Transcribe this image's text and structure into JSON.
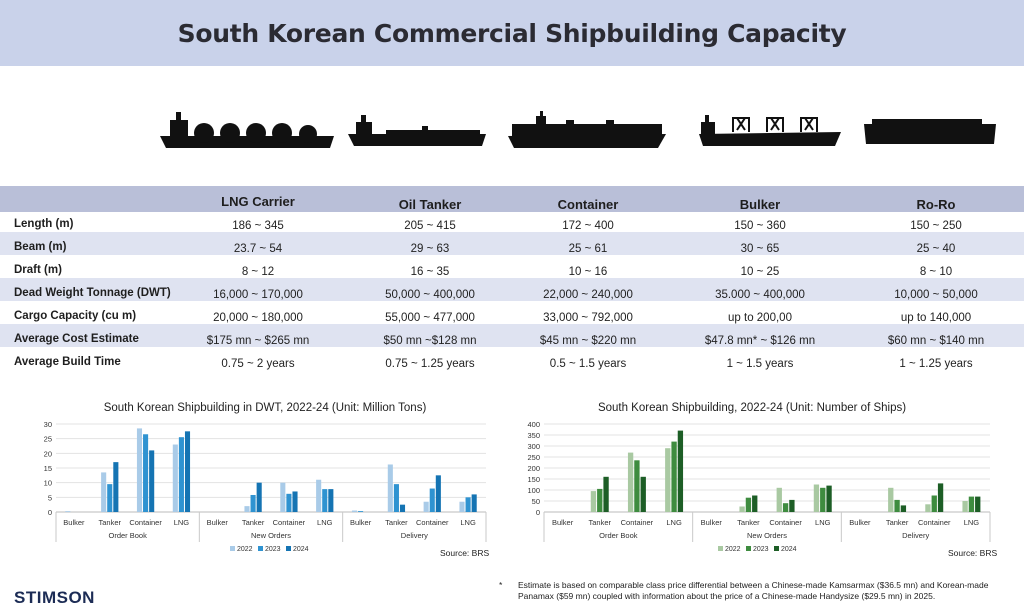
{
  "title": "South Korean Commercial Shipbuilding Capacity",
  "ship_icons": [
    "lng-carrier-silhouette",
    "oil-tanker-silhouette",
    "container-ship-silhouette",
    "bulker-silhouette",
    "ro-ro-silhouette"
  ],
  "table": {
    "columns": [
      "LNG Carrier",
      "Oil Tanker",
      "Container",
      "Bulker",
      "Ro-Ro"
    ],
    "rows": [
      {
        "label": "Length (m)",
        "values": [
          "186 ~ 345",
          "205 ~ 415",
          "172 ~ 400",
          "150 ~ 360",
          "150 ~ 250"
        ]
      },
      {
        "label": "Beam (m)",
        "values": [
          "23.7 ~ 54",
          "29 ~ 63",
          "25 ~ 61",
          "30 ~ 65",
          "25 ~ 40"
        ]
      },
      {
        "label": "Draft (m)",
        "values": [
          "8 ~ 12",
          "16 ~ 35",
          "10 ~ 16",
          "10 ~ 25",
          "8 ~ 10"
        ]
      },
      {
        "label": "Dead Weight Tonnage (DWT)",
        "values": [
          "16,000 ~ 170,000",
          "50,000 ~ 400,000",
          "22,000 ~ 240,000",
          "35.000 ~ 400,000",
          "10,000 ~ 50,000"
        ]
      },
      {
        "label": "Cargo Capacity (cu m)",
        "values": [
          "20,000 ~ 180,000",
          "55,000 ~ 477,000",
          "33,000 ~ 792,000",
          "up to 200,00",
          "up to 140,000"
        ]
      },
      {
        "label": "Average Cost Estimate",
        "values": [
          "$175 mn ~ $265 mn",
          "$50 mn ~$128 mn",
          "$45 mn ~ $220 mn",
          "$47.8 mn* ~ $126 mn",
          "$60 mn ~ $140 mn"
        ]
      },
      {
        "label": "Average Build Time",
        "values": [
          "0.75 ~ 2 years",
          "0.75 ~ 1.25 years",
          "0.5 ~ 1.5 years",
          "1 ~ 1.5 years",
          "1 ~ 1.25 years"
        ]
      }
    ]
  },
  "chart_data": [
    {
      "type": "bar",
      "title": "South Korean Shipbuilding in DWT, 2022-24 (Unit: Million Tons)",
      "groups": [
        "Order Book",
        "New Orders",
        "Delivery"
      ],
      "categories": [
        "Bulker",
        "Tanker",
        "Container",
        "LNG"
      ],
      "ylim": [
        0,
        30
      ],
      "yticks": [
        0,
        5,
        10,
        15,
        20,
        25,
        30
      ],
      "colors": [
        "#a9cbe8",
        "#2f93d1",
        "#1574b3"
      ],
      "series": [
        {
          "name": "2022",
          "values": [
            [
              0.3,
              13.5,
              28.5,
              23
            ],
            [
              0,
              2,
              10,
              11
            ],
            [
              0.5,
              16.2,
              3.5,
              3.5
            ]
          ]
        },
        {
          "name": "2023",
          "values": [
            [
              0,
              9.5,
              26.5,
              25.5
            ],
            [
              0,
              5.8,
              6.2,
              7.8
            ],
            [
              0.3,
              9.5,
              8,
              5
            ]
          ]
        },
        {
          "name": "2024",
          "values": [
            [
              0,
              17,
              21,
              27.5
            ],
            [
              0,
              10,
              7,
              7.8
            ],
            [
              0,
              2.5,
              12.5,
              6
            ]
          ]
        }
      ],
      "source": "Source: BRS"
    },
    {
      "type": "bar",
      "title": "South Korean Shipbuilding, 2022-24 (Unit: Number of Ships)",
      "groups": [
        "Order Book",
        "New Orders",
        "Delivery"
      ],
      "categories": [
        "Bulker",
        "Tanker",
        "Container",
        "LNG"
      ],
      "ylim": [
        0,
        400
      ],
      "yticks": [
        0,
        50,
        100,
        150,
        200,
        250,
        300,
        350,
        400
      ],
      "colors": [
        "#a9c9a2",
        "#3e8c3f",
        "#1d5e26"
      ],
      "series": [
        {
          "name": "2022",
          "values": [
            [
              0,
              95,
              270,
              290
            ],
            [
              0,
              25,
              110,
              125
            ],
            [
              0,
              110,
              35,
              50
            ]
          ]
        },
        {
          "name": "2023",
          "values": [
            [
              0,
              105,
              235,
              320
            ],
            [
              0,
              65,
              40,
              110
            ],
            [
              0,
              55,
              75,
              70
            ]
          ]
        },
        {
          "name": "2024",
          "values": [
            [
              0,
              160,
              160,
              370
            ],
            [
              0,
              75,
              55,
              120
            ],
            [
              0,
              30,
              130,
              70
            ]
          ]
        }
      ],
      "source": "Source: BRS"
    }
  ],
  "footnote_mark": "*",
  "footnote": "Estimate is based on comparable class price differential between a Chinese-made Kamsarmax ($36.5 mn) and Korean-made Panamax ($59 mn) coupled with information about the price of a Chinese-made Handysize ($29.5 mn) in 2025.",
  "logo": "STIMSON"
}
